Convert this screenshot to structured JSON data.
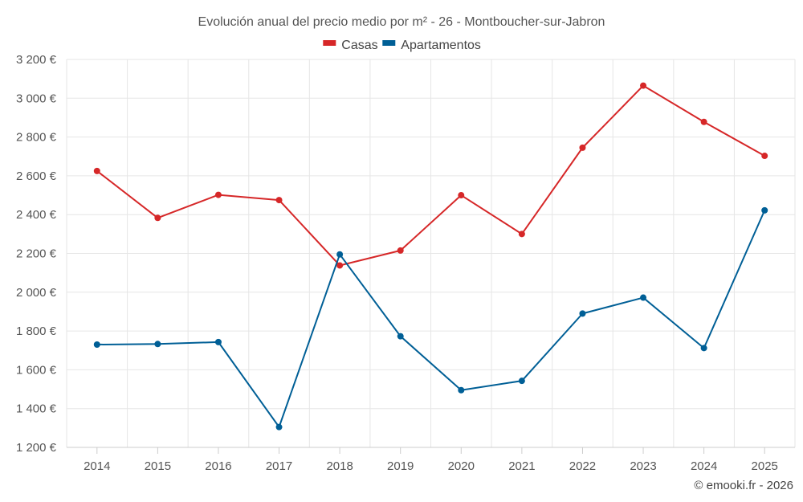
{
  "chart_data": {
    "type": "line",
    "title": "Evolución anual del precio medio por m² - 26 - Montboucher-sur-Jabron",
    "categories": [
      "2014",
      "2015",
      "2016",
      "2017",
      "2018",
      "2019",
      "2020",
      "2021",
      "2022",
      "2023",
      "2024",
      "2025"
    ],
    "ylim": [
      1200,
      3200
    ],
    "yticks": [
      1200,
      1400,
      1600,
      1800,
      2000,
      2200,
      2400,
      2600,
      2800,
      3000,
      3200
    ],
    "ytick_labels": [
      "1 200 €",
      "1 400 €",
      "1 600 €",
      "1 800 €",
      "2 000 €",
      "2 200 €",
      "2 400 €",
      "2 600 €",
      "2 800 €",
      "3 000 €",
      "3 200 €"
    ],
    "grid": true,
    "legend_position": "top-center",
    "series": [
      {
        "name": "Casas",
        "color": "#d62728",
        "values": [
          2625,
          2383,
          2502,
          2475,
          2138,
          2215,
          2500,
          2300,
          2745,
          3065,
          2878,
          2703
        ]
      },
      {
        "name": "Apartamentos",
        "color": "#005f96",
        "values": [
          1730,
          1733,
          1743,
          1305,
          2195,
          1773,
          1495,
          1543,
          1890,
          1972,
          1712,
          2422
        ]
      }
    ],
    "credit": "© emooki.fr - 2026"
  }
}
